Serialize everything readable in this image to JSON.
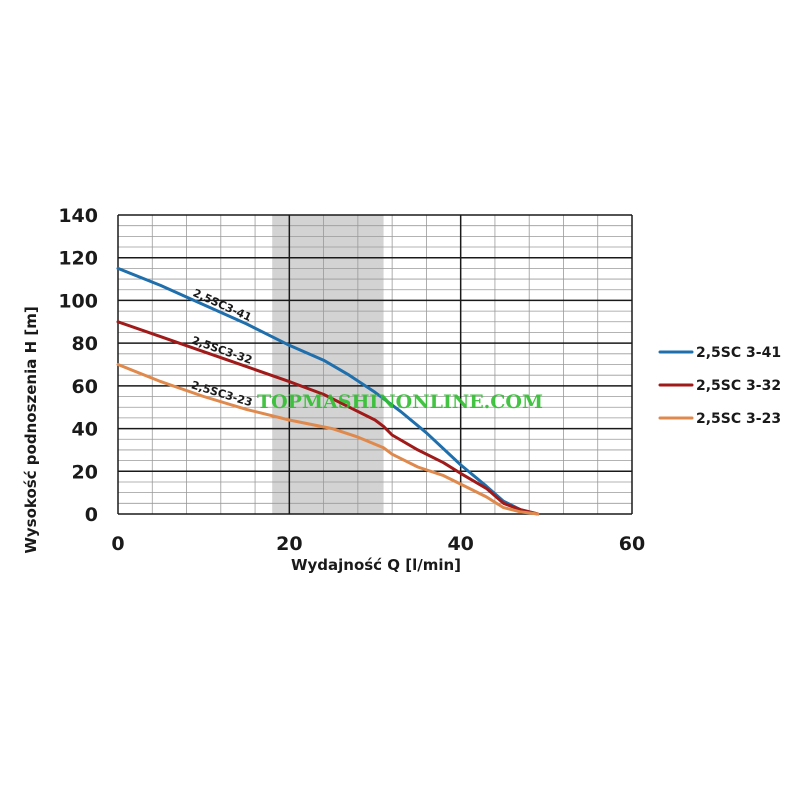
{
  "chart_data": {
    "type": "line",
    "xlabel": "Wydajność Q [l/min]",
    "ylabel": "Wysokość podnoszenia H [m]",
    "xlim": [
      0,
      60
    ],
    "ylim": [
      0,
      140
    ],
    "xticks": [
      0,
      20,
      40,
      60
    ],
    "yticks": [
      0,
      20,
      40,
      60,
      80,
      100,
      120,
      140
    ],
    "grid": true,
    "legend_position": "right",
    "highlight_band": {
      "x": [
        18,
        31
      ],
      "color": "#d3d3d3"
    },
    "series": [
      {
        "name": "2,5SC 3-41",
        "curve_label": "2,5SC3-41",
        "color": "#1f6fad",
        "points": [
          [
            0,
            115
          ],
          [
            5,
            107
          ],
          [
            10,
            98
          ],
          [
            15,
            89
          ],
          [
            20,
            79
          ],
          [
            24,
            72
          ],
          [
            27,
            65
          ],
          [
            30,
            57
          ],
          [
            33,
            48
          ],
          [
            36,
            38
          ],
          [
            40,
            23
          ],
          [
            43,
            13
          ],
          [
            45,
            6
          ],
          [
            47,
            2
          ],
          [
            49,
            0
          ]
        ]
      },
      {
        "name": "2,5SC 3-32",
        "curve_label": "2,5SC3-32",
        "color": "#a01a1a",
        "points": [
          [
            0,
            90
          ],
          [
            5,
            83
          ],
          [
            10,
            76
          ],
          [
            15,
            69
          ],
          [
            20,
            62
          ],
          [
            24,
            56
          ],
          [
            27,
            50
          ],
          [
            30,
            44
          ],
          [
            31,
            41
          ],
          [
            32,
            37
          ],
          [
            35,
            30
          ],
          [
            38,
            24
          ],
          [
            40,
            19
          ],
          [
            43,
            12
          ],
          [
            45,
            5
          ],
          [
            47,
            2
          ],
          [
            49,
            0
          ]
        ]
      },
      {
        "name": "2,5SC 3-23",
        "curve_label": "2,5SC3-23",
        "color": "#e0894c",
        "points": [
          [
            0,
            70
          ],
          [
            5,
            62
          ],
          [
            10,
            55
          ],
          [
            15,
            49
          ],
          [
            20,
            44
          ],
          [
            25,
            40
          ],
          [
            28,
            36
          ],
          [
            31,
            31
          ],
          [
            32,
            28
          ],
          [
            35,
            22
          ],
          [
            38,
            18
          ],
          [
            40,
            14
          ],
          [
            43,
            8
          ],
          [
            45,
            3
          ],
          [
            47,
            1
          ],
          [
            49,
            0
          ]
        ]
      }
    ]
  },
  "watermark": "TOPMASHINONLINE.COM"
}
